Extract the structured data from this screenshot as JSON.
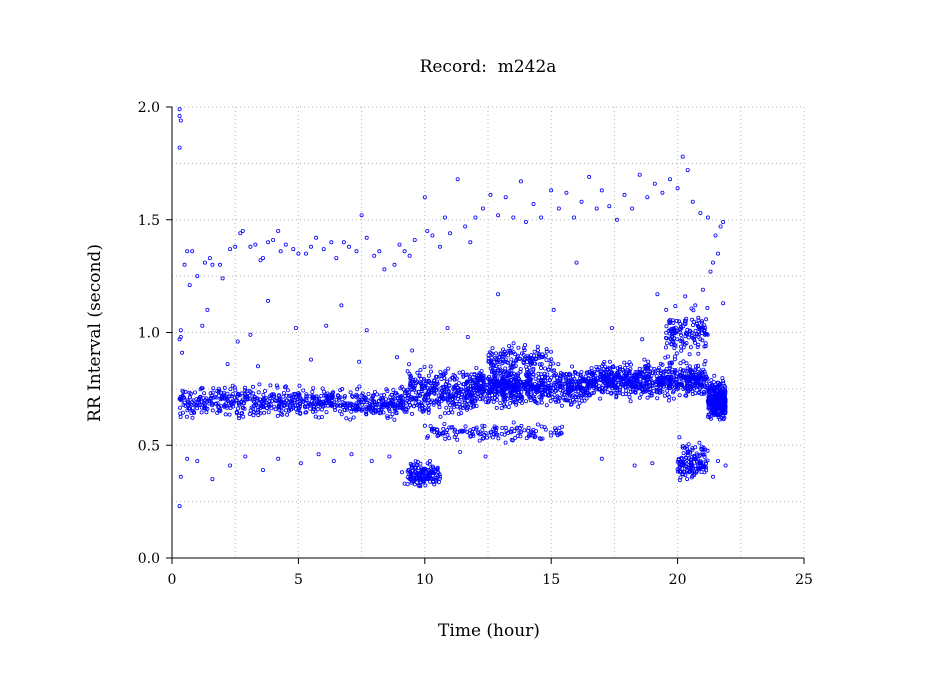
{
  "chart_data": {
    "type": "scatter",
    "title": "Record:  m242a",
    "xlabel": "Time (hour)",
    "ylabel": "RR Interval (second)",
    "xlim": [
      0,
      25
    ],
    "ylim": [
      0.0,
      2.0
    ],
    "xticks": [
      0,
      5,
      10,
      15,
      20,
      25
    ],
    "xtick_labels": [
      "0",
      "5",
      "10",
      "15",
      "20",
      "25"
    ],
    "yticks": [
      0.0,
      0.5,
      1.0,
      1.5,
      2.0
    ],
    "ytick_labels": [
      "0.0",
      "0.5",
      "1.0",
      "1.5",
      "2.0"
    ],
    "grid": true,
    "marker": "open-circle",
    "series_color": "#0000ff",
    "data_extent_x": [
      0.3,
      21.9
    ],
    "density_bands": [
      {
        "x_start": 0.3,
        "x_end": 9.3,
        "y_center": 0.69,
        "y_spread": 0.05,
        "density": "very high"
      },
      {
        "x_start": 9.3,
        "x_end": 12.0,
        "y_center": 0.74,
        "y_spread": 0.08,
        "density": "high"
      },
      {
        "x_start": 12.0,
        "x_end": 16.5,
        "y_center": 0.76,
        "y_spread": 0.06,
        "density": "very high"
      },
      {
        "x_start": 16.5,
        "x_end": 21.2,
        "y_center": 0.79,
        "y_spread": 0.06,
        "density": "very high"
      },
      {
        "x_start": 21.2,
        "x_end": 21.9,
        "y_center": 0.7,
        "y_spread": 0.06,
        "density": "high"
      },
      {
        "x_start": 9.8,
        "x_end": 15.5,
        "y_center": 0.56,
        "y_spread": 0.03,
        "density": "medium"
      },
      {
        "x_start": 12.5,
        "x_end": 15.0,
        "y_center": 0.88,
        "y_spread": 0.05,
        "density": "medium"
      },
      {
        "x_start": 9.3,
        "x_end": 10.6,
        "y_center": 0.37,
        "y_spread": 0.04,
        "density": "medium"
      },
      {
        "x_start": 19.5,
        "x_end": 21.2,
        "y_center": 1.0,
        "y_spread": 0.08,
        "density": "medium"
      },
      {
        "x_start": 20.0,
        "x_end": 21.2,
        "y_center": 0.43,
        "y_spread": 0.06,
        "density": "medium"
      }
    ],
    "sparse_points": [
      [
        0.3,
        1.99
      ],
      [
        0.3,
        1.96
      ],
      [
        0.35,
        1.94
      ],
      [
        0.3,
        1.82
      ],
      [
        0.35,
        1.01
      ],
      [
        0.35,
        0.98
      ],
      [
        0.3,
        0.97
      ],
      [
        0.35,
        0.36
      ],
      [
        0.3,
        0.23
      ],
      [
        0.5,
        1.3
      ],
      [
        0.6,
        1.36
      ],
      [
        0.8,
        1.36
      ],
      [
        0.7,
        1.21
      ],
      [
        1.0,
        1.25
      ],
      [
        1.3,
        1.31
      ],
      [
        1.5,
        1.33
      ],
      [
        1.6,
        1.3
      ],
      [
        1.9,
        1.3
      ],
      [
        2.0,
        1.24
      ],
      [
        2.3,
        1.37
      ],
      [
        2.5,
        1.38
      ],
      [
        2.7,
        1.44
      ],
      [
        2.8,
        1.45
      ],
      [
        3.1,
        1.38
      ],
      [
        3.3,
        1.39
      ],
      [
        3.5,
        1.32
      ],
      [
        3.6,
        1.33
      ],
      [
        3.8,
        1.4
      ],
      [
        4.0,
        1.41
      ],
      [
        4.2,
        1.45
      ],
      [
        4.3,
        1.36
      ],
      [
        4.5,
        1.39
      ],
      [
        4.8,
        1.37
      ],
      [
        5.0,
        1.35
      ],
      [
        5.3,
        1.35
      ],
      [
        5.5,
        1.38
      ],
      [
        5.7,
        1.42
      ],
      [
        6.0,
        1.37
      ],
      [
        6.3,
        1.4
      ],
      [
        6.5,
        1.33
      ],
      [
        6.8,
        1.4
      ],
      [
        7.0,
        1.38
      ],
      [
        7.3,
        1.36
      ],
      [
        7.5,
        1.52
      ],
      [
        7.7,
        1.42
      ],
      [
        8.0,
        1.34
      ],
      [
        8.2,
        1.36
      ],
      [
        8.4,
        1.28
      ],
      [
        8.8,
        1.3
      ],
      [
        9.0,
        1.39
      ],
      [
        9.2,
        1.36
      ],
      [
        9.4,
        1.34
      ],
      [
        9.6,
        1.41
      ],
      [
        10.0,
        1.6
      ],
      [
        10.1,
        1.45
      ],
      [
        10.3,
        1.43
      ],
      [
        10.6,
        1.38
      ],
      [
        10.8,
        1.51
      ],
      [
        11.0,
        1.44
      ],
      [
        11.3,
        1.68
      ],
      [
        11.6,
        1.47
      ],
      [
        11.8,
        1.4
      ],
      [
        12.0,
        1.51
      ],
      [
        12.3,
        1.55
      ],
      [
        12.6,
        1.61
      ],
      [
        12.9,
        1.52
      ],
      [
        13.2,
        1.6
      ],
      [
        13.5,
        1.51
      ],
      [
        13.8,
        1.67
      ],
      [
        14.0,
        1.49
      ],
      [
        14.3,
        1.57
      ],
      [
        14.6,
        1.51
      ],
      [
        15.0,
        1.63
      ],
      [
        15.3,
        1.55
      ],
      [
        15.6,
        1.62
      ],
      [
        15.9,
        1.51
      ],
      [
        16.2,
        1.58
      ],
      [
        16.5,
        1.69
      ],
      [
        16.8,
        1.55
      ],
      [
        17.0,
        1.63
      ],
      [
        17.3,
        1.56
      ],
      [
        17.6,
        1.5
      ],
      [
        17.9,
        1.61
      ],
      [
        18.2,
        1.55
      ],
      [
        18.5,
        1.7
      ],
      [
        18.8,
        1.6
      ],
      [
        19.1,
        1.66
      ],
      [
        19.4,
        1.62
      ],
      [
        19.7,
        1.68
      ],
      [
        20.0,
        1.64
      ],
      [
        20.2,
        1.78
      ],
      [
        20.4,
        1.72
      ],
      [
        20.6,
        1.58
      ],
      [
        20.9,
        1.53
      ],
      [
        21.2,
        1.51
      ],
      [
        21.5,
        1.43
      ],
      [
        21.7,
        1.47
      ],
      [
        21.8,
        1.49
      ],
      [
        1.2,
        1.03
      ],
      [
        2.6,
        0.96
      ],
      [
        3.1,
        0.99
      ],
      [
        4.9,
        1.02
      ],
      [
        6.1,
        1.03
      ],
      [
        6.7,
        1.12
      ],
      [
        7.7,
        1.01
      ],
      [
        3.8,
        1.14
      ],
      [
        1.4,
        1.1
      ],
      [
        15.1,
        1.1
      ],
      [
        16.0,
        1.31
      ],
      [
        12.9,
        1.17
      ],
      [
        19.2,
        1.17
      ],
      [
        0.6,
        0.44
      ],
      [
        1.0,
        0.43
      ],
      [
        1.6,
        0.35
      ],
      [
        2.3,
        0.41
      ],
      [
        2.9,
        0.45
      ],
      [
        3.6,
        0.39
      ],
      [
        4.2,
        0.44
      ],
      [
        5.1,
        0.42
      ],
      [
        5.8,
        0.46
      ],
      [
        6.4,
        0.43
      ],
      [
        7.1,
        0.46
      ],
      [
        7.9,
        0.43
      ],
      [
        8.6,
        0.45
      ],
      [
        9.1,
        0.38
      ],
      [
        9.2,
        0.33
      ],
      [
        9.5,
        0.34
      ],
      [
        9.8,
        0.35
      ],
      [
        10.2,
        0.43
      ],
      [
        11.4,
        0.47
      ],
      [
        12.4,
        0.45
      ],
      [
        17.0,
        0.44
      ],
      [
        18.3,
        0.41
      ],
      [
        19.0,
        0.42
      ],
      [
        21.4,
        0.36
      ],
      [
        21.6,
        0.43
      ],
      [
        21.9,
        0.41
      ],
      [
        0.4,
        0.91
      ],
      [
        2.2,
        0.86
      ],
      [
        3.4,
        0.85
      ],
      [
        5.5,
        0.88
      ],
      [
        7.4,
        0.87
      ],
      [
        8.9,
        0.89
      ],
      [
        9.5,
        0.92
      ],
      [
        10.9,
        1.02
      ],
      [
        11.7,
        0.98
      ],
      [
        17.4,
        1.02
      ],
      [
        18.6,
        0.97
      ],
      [
        20.3,
        1.16
      ],
      [
        20.7,
        1.12
      ],
      [
        21.0,
        1.19
      ],
      [
        21.3,
        1.27
      ],
      [
        21.4,
        1.31
      ],
      [
        21.6,
        1.35
      ],
      [
        21.8,
        1.13
      ]
    ]
  }
}
